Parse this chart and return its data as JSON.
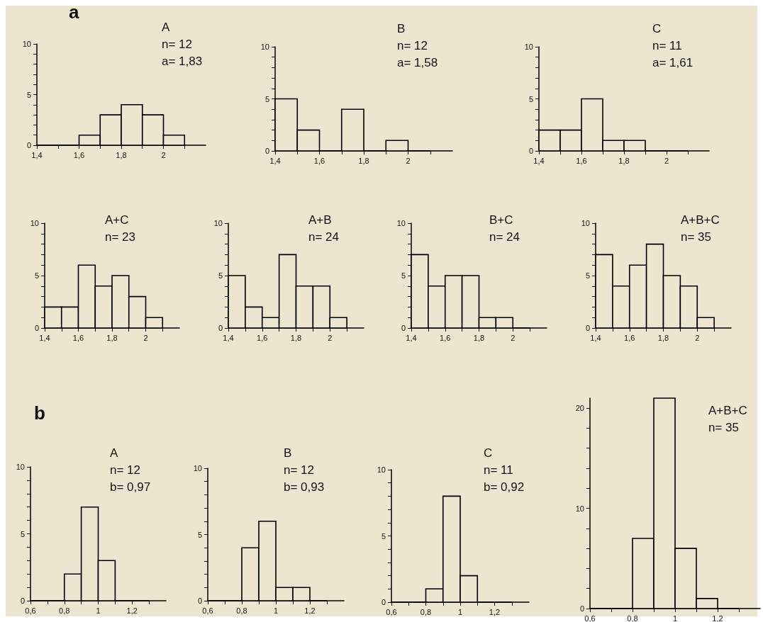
{
  "chart_data": [
    {
      "type": "other",
      "title": "a"
    },
    {
      "type": "histogram",
      "title": "A",
      "annotations": [
        "n= 12",
        "a= 1,83"
      ],
      "bins": [
        1.4,
        1.5,
        1.6,
        1.7,
        1.8,
        1.9,
        2.0,
        2.1
      ],
      "values": [
        0,
        0,
        1,
        3,
        4,
        3,
        1
      ],
      "color": "#000000",
      "xlim": [
        1.4,
        2.2
      ],
      "ylim": [
        0,
        10
      ],
      "xticks": [
        {
          "value": 1.4,
          "label": "1,4"
        },
        {
          "value": 1.5,
          "label": null
        },
        {
          "value": 1.6,
          "label": "1,6"
        },
        {
          "value": 1.7,
          "label": null
        },
        {
          "value": 1.8,
          "label": "1,8"
        },
        {
          "value": 1.9,
          "label": null
        },
        {
          "value": 2,
          "label": "2"
        },
        {
          "value": 2.1,
          "label": null
        }
      ],
      "yticks": [
        0,
        {
          "value": 1,
          "label": null
        },
        {
          "value": 2,
          "label": null
        },
        {
          "value": 3,
          "label": null
        },
        {
          "value": 4,
          "label": null
        },
        5,
        {
          "value": 6,
          "label": null
        },
        {
          "value": 7,
          "label": null
        },
        {
          "value": 8,
          "label": null
        },
        {
          "value": 9,
          "label": null
        },
        10
      ]
    },
    {
      "type": "histogram",
      "title": "B",
      "annotations": [
        "n= 12",
        "a= 1,58"
      ],
      "bins": [
        1.4,
        1.5,
        1.6,
        1.7,
        1.8,
        1.9,
        2.0,
        2.1
      ],
      "values": [
        5,
        2,
        0,
        4,
        0,
        1,
        0
      ],
      "color": "#000000",
      "xlim": [
        1.4,
        2.2
      ],
      "ylim": [
        0,
        10
      ],
      "xticks": [
        {
          "value": 1.4,
          "label": "1,4"
        },
        {
          "value": 1.5,
          "label": null
        },
        {
          "value": 1.6,
          "label": "1,6"
        },
        {
          "value": 1.7,
          "label": null
        },
        {
          "value": 1.8,
          "label": "1,8"
        },
        {
          "value": 1.9,
          "label": null
        },
        {
          "value": 2,
          "label": "2"
        },
        {
          "value": 2.1,
          "label": null
        }
      ],
      "yticks": [
        0,
        {
          "value": 1,
          "label": null
        },
        {
          "value": 2,
          "label": null
        },
        {
          "value": 3,
          "label": null
        },
        {
          "value": 4,
          "label": null
        },
        5,
        {
          "value": 6,
          "label": null
        },
        {
          "value": 7,
          "label": null
        },
        {
          "value": 8,
          "label": null
        },
        {
          "value": 9,
          "label": null
        },
        10
      ]
    },
    {
      "type": "histogram",
      "title": "C",
      "annotations": [
        "n= 11",
        "a= 1,61"
      ],
      "bins": [
        1.4,
        1.5,
        1.6,
        1.7,
        1.8,
        1.9,
        2.0,
        2.1
      ],
      "values": [
        2,
        2,
        5,
        1,
        1,
        0,
        0
      ],
      "color": "#000000",
      "xlim": [
        1.4,
        2.2
      ],
      "ylim": [
        0,
        10
      ],
      "xticks": [
        {
          "value": 1.4,
          "label": "1,4"
        },
        {
          "value": 1.5,
          "label": null
        },
        {
          "value": 1.6,
          "label": "1,6"
        },
        {
          "value": 1.7,
          "label": null
        },
        {
          "value": 1.8,
          "label": "1,8"
        },
        {
          "value": 1.9,
          "label": null
        },
        {
          "value": 2,
          "label": "2"
        },
        {
          "value": 2.1,
          "label": null
        }
      ],
      "yticks": [
        0,
        {
          "value": 1,
          "label": null
        },
        {
          "value": 2,
          "label": null
        },
        {
          "value": 3,
          "label": null
        },
        {
          "value": 4,
          "label": null
        },
        5,
        {
          "value": 6,
          "label": null
        },
        {
          "value": 7,
          "label": null
        },
        {
          "value": 8,
          "label": null
        },
        {
          "value": 9,
          "label": null
        },
        10
      ]
    },
    {
      "type": "histogram",
      "title": "A+C",
      "annotations": [
        "n= 23"
      ],
      "bins": [
        1.4,
        1.5,
        1.6,
        1.7,
        1.8,
        1.9,
        2.0,
        2.1
      ],
      "values": [
        2,
        2,
        6,
        4,
        5,
        3,
        1
      ],
      "color": "#000000",
      "xlim": [
        1.4,
        2.2
      ],
      "ylim": [
        0,
        10
      ],
      "xticks": [
        {
          "value": 1.4,
          "label": "1,4"
        },
        {
          "value": 1.5,
          "label": null
        },
        {
          "value": 1.6,
          "label": "1,6"
        },
        {
          "value": 1.7,
          "label": null
        },
        {
          "value": 1.8,
          "label": "1,8"
        },
        {
          "value": 1.9,
          "label": null
        },
        {
          "value": 2,
          "label": "2"
        },
        {
          "value": 2.1,
          "label": null
        }
      ],
      "yticks": [
        0,
        {
          "value": 1,
          "label": null
        },
        {
          "value": 2,
          "label": null
        },
        {
          "value": 3,
          "label": null
        },
        {
          "value": 4,
          "label": null
        },
        5,
        {
          "value": 6,
          "label": null
        },
        {
          "value": 7,
          "label": null
        },
        {
          "value": 8,
          "label": null
        },
        {
          "value": 9,
          "label": null
        },
        10
      ]
    },
    {
      "type": "histogram",
      "title": "A+B",
      "annotations": [
        "n= 24"
      ],
      "bins": [
        1.4,
        1.5,
        1.6,
        1.7,
        1.8,
        1.9,
        2.0,
        2.1
      ],
      "values": [
        5,
        2,
        1,
        7,
        4,
        4,
        1
      ],
      "color": "#000000",
      "xlim": [
        1.4,
        2.2
      ],
      "ylim": [
        0,
        10
      ],
      "xticks": [
        {
          "value": 1.4,
          "label": "1,4"
        },
        {
          "value": 1.5,
          "label": null
        },
        {
          "value": 1.6,
          "label": "1,6"
        },
        {
          "value": 1.7,
          "label": null
        },
        {
          "value": 1.8,
          "label": "1,8"
        },
        {
          "value": 1.9,
          "label": null
        },
        {
          "value": 2,
          "label": "2"
        },
        {
          "value": 2.1,
          "label": null
        }
      ],
      "yticks": [
        0,
        {
          "value": 1,
          "label": null
        },
        {
          "value": 2,
          "label": null
        },
        {
          "value": 3,
          "label": null
        },
        {
          "value": 4,
          "label": null
        },
        5,
        {
          "value": 6,
          "label": null
        },
        {
          "value": 7,
          "label": null
        },
        {
          "value": 8,
          "label": null
        },
        {
          "value": 9,
          "label": null
        },
        10
      ]
    },
    {
      "type": "histogram",
      "title": "B+C",
      "annotations": [
        "n= 24"
      ],
      "bins": [
        1.4,
        1.5,
        1.6,
        1.7,
        1.8,
        1.9,
        2.0,
        2.1
      ],
      "values": [
        7,
        4,
        5,
        5,
        1,
        1,
        0
      ],
      "color": "#000000",
      "xlim": [
        1.4,
        2.2
      ],
      "ylim": [
        0,
        10
      ],
      "xticks": [
        {
          "value": 1.4,
          "label": "1,4"
        },
        {
          "value": 1.5,
          "label": null
        },
        {
          "value": 1.6,
          "label": "1,6"
        },
        {
          "value": 1.7,
          "label": null
        },
        {
          "value": 1.8,
          "label": "1,8"
        },
        {
          "value": 1.9,
          "label": null
        },
        {
          "value": 2,
          "label": "2"
        },
        {
          "value": 2.1,
          "label": null
        }
      ],
      "yticks": [
        0,
        {
          "value": 1,
          "label": null
        },
        {
          "value": 2,
          "label": null
        },
        {
          "value": 3,
          "label": null
        },
        {
          "value": 4,
          "label": null
        },
        5,
        {
          "value": 6,
          "label": null
        },
        {
          "value": 7,
          "label": null
        },
        {
          "value": 8,
          "label": null
        },
        {
          "value": 9,
          "label": null
        },
        10
      ]
    },
    {
      "type": "histogram",
      "title": "A+B+C",
      "annotations": [
        "n= 35"
      ],
      "bins": [
        1.4,
        1.5,
        1.6,
        1.7,
        1.8,
        1.9,
        2.0,
        2.1
      ],
      "values": [
        7,
        4,
        6,
        8,
        5,
        4,
        1
      ],
      "color": "#000000",
      "xlim": [
        1.4,
        2.2
      ],
      "ylim": [
        0,
        10
      ],
      "xticks": [
        {
          "value": 1.4,
          "label": "1,4"
        },
        {
          "value": 1.5,
          "label": null
        },
        {
          "value": 1.6,
          "label": "1,6"
        },
        {
          "value": 1.7,
          "label": null
        },
        {
          "value": 1.8,
          "label": "1,8"
        },
        {
          "value": 1.9,
          "label": null
        },
        {
          "value": 2,
          "label": "2"
        },
        {
          "value": 2.1,
          "label": null
        }
      ],
      "yticks": [
        0,
        {
          "value": 1,
          "label": null
        },
        {
          "value": 2,
          "label": null
        },
        {
          "value": 3,
          "label": null
        },
        {
          "value": 4,
          "label": null
        },
        5,
        {
          "value": 6,
          "label": null
        },
        {
          "value": 7,
          "label": null
        },
        {
          "value": 8,
          "label": null
        },
        {
          "value": 9,
          "label": null
        },
        10
      ]
    },
    {
      "type": "other",
      "title": "b"
    },
    {
      "type": "histogram",
      "title": "A",
      "annotations": [
        "n= 12",
        "b= 0,97"
      ],
      "bins": [
        0.6,
        0.7,
        0.8,
        0.9,
        1.0,
        1.1,
        1.2,
        1.3
      ],
      "values": [
        0,
        0,
        2,
        7,
        3,
        0,
        0
      ],
      "color": "#000000",
      "xlim": [
        0.6,
        1.4
      ],
      "ylim": [
        0,
        10
      ],
      "xticks": [
        {
          "value": 0.6,
          "label": "0,6"
        },
        {
          "value": 0.7,
          "label": null
        },
        {
          "value": 0.8,
          "label": "0,8"
        },
        {
          "value": 0.9,
          "label": null
        },
        {
          "value": 1,
          "label": "1"
        },
        {
          "value": 1.1,
          "label": null
        },
        {
          "value": 1.2,
          "label": "1,2"
        },
        {
          "value": 1.3,
          "label": null
        }
      ],
      "yticks": [
        0,
        {
          "value": 1,
          "label": null
        },
        {
          "value": 2,
          "label": null
        },
        {
          "value": 3,
          "label": null
        },
        {
          "value": 4,
          "label": null
        },
        5,
        {
          "value": 6,
          "label": null
        },
        {
          "value": 7,
          "label": null
        },
        {
          "value": 8,
          "label": null
        },
        {
          "value": 9,
          "label": null
        },
        10
      ]
    },
    {
      "type": "histogram",
      "title": "B",
      "annotations": [
        "n= 12",
        "b= 0,93"
      ],
      "bins": [
        0.6,
        0.7,
        0.8,
        0.9,
        1.0,
        1.1,
        1.2,
        1.3
      ],
      "values": [
        0,
        0,
        4,
        6,
        1,
        1,
        0
      ],
      "color": "#000000",
      "xlim": [
        0.6,
        1.4
      ],
      "ylim": [
        0,
        10
      ],
      "xticks": [
        {
          "value": 0.6,
          "label": "0,6"
        },
        {
          "value": 0.7,
          "label": null
        },
        {
          "value": 0.8,
          "label": "0,8"
        },
        {
          "value": 0.9,
          "label": null
        },
        {
          "value": 1,
          "label": "1"
        },
        {
          "value": 1.1,
          "label": null
        },
        {
          "value": 1.2,
          "label": "1,2"
        },
        {
          "value": 1.3,
          "label": null
        }
      ],
      "yticks": [
        0,
        {
          "value": 1,
          "label": null
        },
        {
          "value": 2,
          "label": null
        },
        {
          "value": 3,
          "label": null
        },
        {
          "value": 4,
          "label": null
        },
        5,
        {
          "value": 6,
          "label": null
        },
        {
          "value": 7,
          "label": null
        },
        {
          "value": 8,
          "label": null
        },
        {
          "value": 9,
          "label": null
        },
        10
      ]
    },
    {
      "type": "histogram",
      "title": "C",
      "annotations": [
        "n= 11",
        "b= 0,92"
      ],
      "bins": [
        0.6,
        0.7,
        0.8,
        0.9,
        1.0,
        1.1,
        1.2,
        1.3
      ],
      "values": [
        0,
        0,
        1,
        8,
        2,
        0,
        0
      ],
      "color": "#000000",
      "xlim": [
        0.6,
        1.4
      ],
      "ylim": [
        0,
        10
      ],
      "xticks": [
        {
          "value": 0.6,
          "label": "0,6"
        },
        {
          "value": 0.7,
          "label": null
        },
        {
          "value": 0.8,
          "label": "0,8"
        },
        {
          "value": 0.9,
          "label": null
        },
        {
          "value": 1,
          "label": "1"
        },
        {
          "value": 1.1,
          "label": null
        },
        {
          "value": 1.2,
          "label": "1,2"
        },
        {
          "value": 1.3,
          "label": null
        }
      ],
      "yticks": [
        0,
        {
          "value": 1,
          "label": null
        },
        {
          "value": 2,
          "label": null
        },
        {
          "value": 3,
          "label": null
        },
        {
          "value": 4,
          "label": null
        },
        5,
        {
          "value": 6,
          "label": null
        },
        {
          "value": 7,
          "label": null
        },
        {
          "value": 8,
          "label": null
        },
        {
          "value": 9,
          "label": null
        },
        10
      ]
    },
    {
      "type": "histogram",
      "title": "A+B+C",
      "annotations": [
        "n= 35"
      ],
      "bins": [
        0.6,
        0.7,
        0.8,
        0.9,
        1.0,
        1.1,
        1.2,
        1.3
      ],
      "values": [
        0,
        0,
        7,
        21,
        6,
        1,
        0
      ],
      "color": "#000000",
      "xlim": [
        0.6,
        1.4
      ],
      "ylim": [
        0,
        21
      ],
      "xticks": [
        {
          "value": 0.6,
          "label": "0,6"
        },
        {
          "value": 0.7,
          "label": null
        },
        {
          "value": 0.8,
          "label": "0,8"
        },
        {
          "value": 0.9,
          "label": null
        },
        {
          "value": 1,
          "label": "1"
        },
        {
          "value": 1.1,
          "label": null
        },
        {
          "value": 1.2,
          "label": "1,2"
        },
        {
          "value": 1.3,
          "label": null
        }
      ],
      "yticks": [
        0,
        {
          "value": 2,
          "label": null
        },
        {
          "value": 4,
          "label": null
        },
        {
          "value": 6,
          "label": null
        },
        {
          "value": 8,
          "label": null
        },
        10,
        {
          "value": 12,
          "label": null
        },
        {
          "value": 14,
          "label": null
        },
        {
          "value": 16,
          "label": null
        },
        {
          "value": 18,
          "label": null
        },
        20
      ]
    }
  ]
}
